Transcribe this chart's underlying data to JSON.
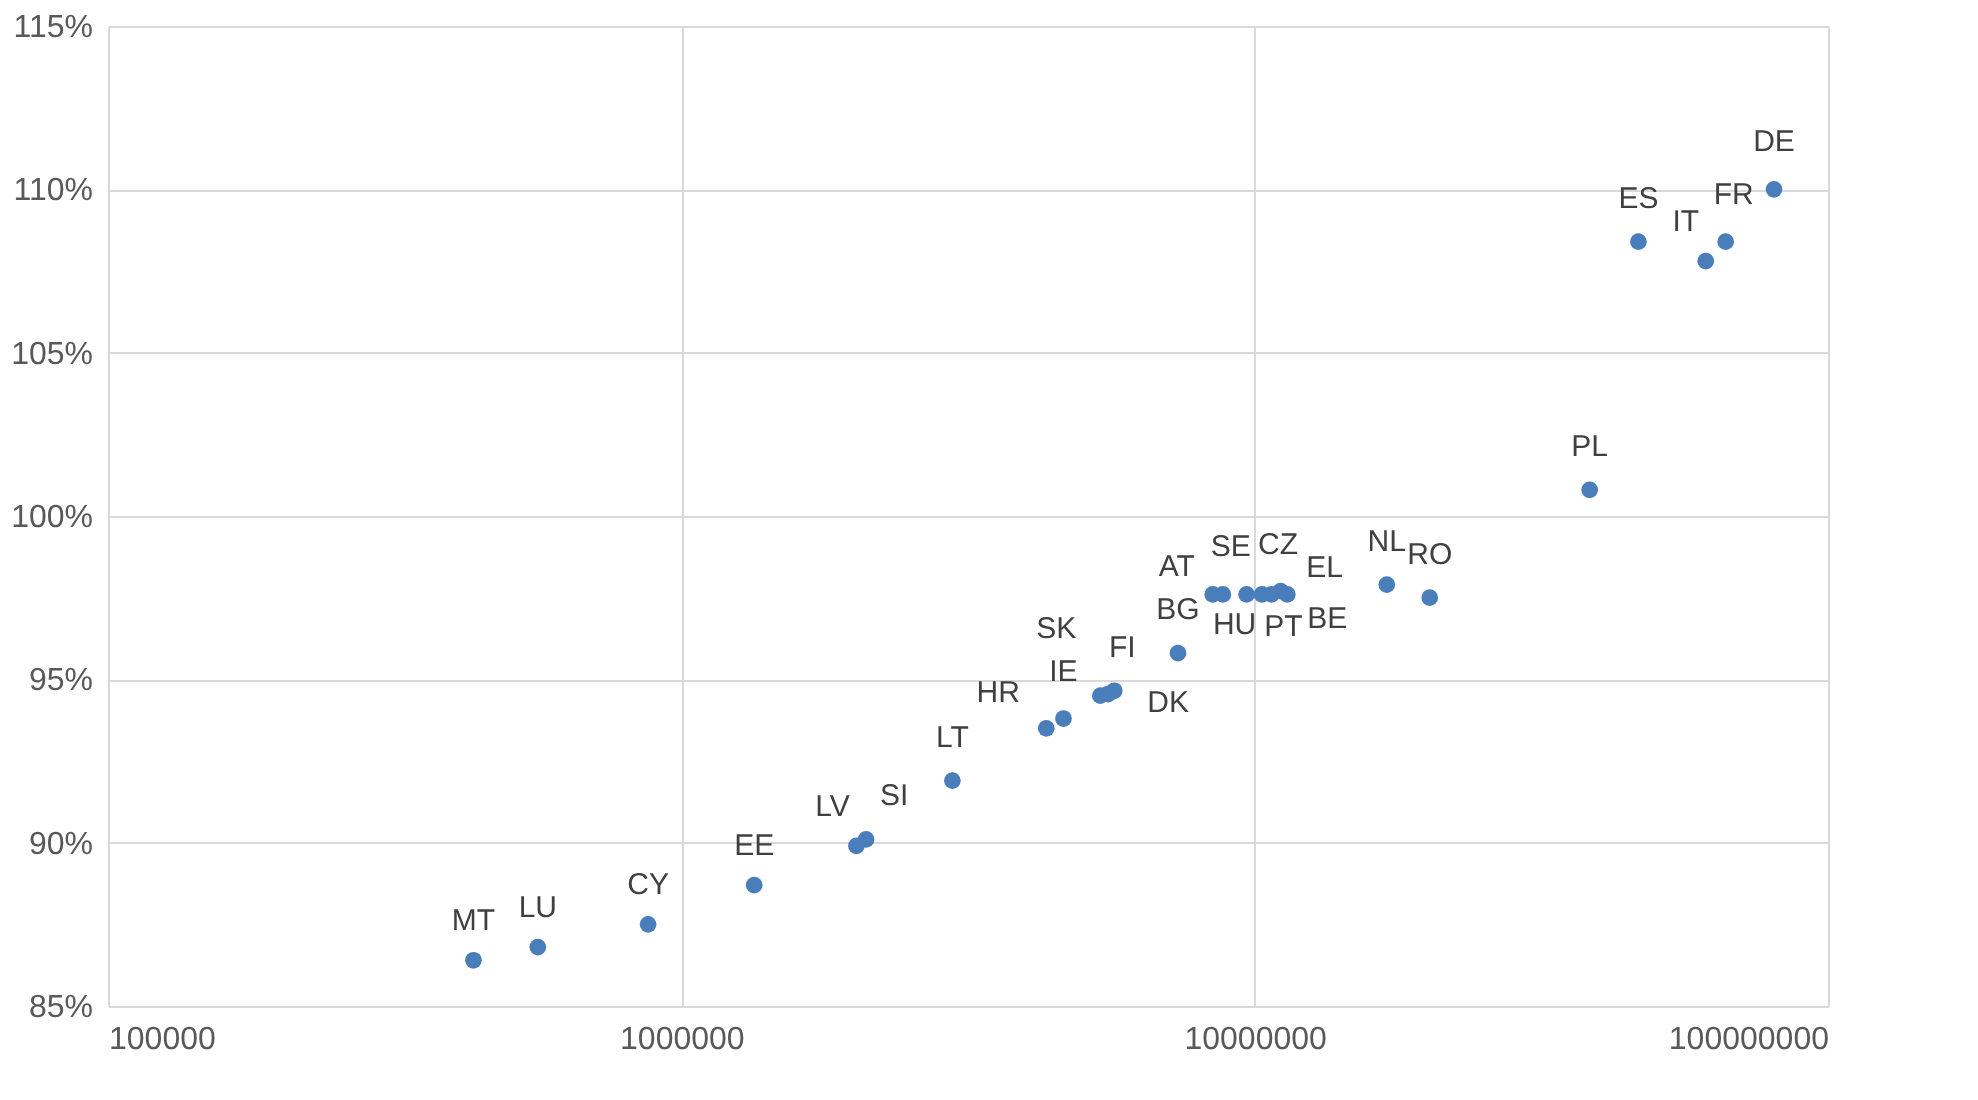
{
  "chart_data": {
    "type": "scatter",
    "log": "x",
    "grid": true,
    "marker": "circle",
    "x": [
      434000,
      562000,
      875000,
      1340000,
      2020000,
      2100000,
      2970000,
      4330000,
      4640000,
      5380000,
      5550000,
      5690000,
      7350000,
      8450000,
      8800000,
      9680000,
      10300000,
      10700000,
      11100000,
      11400000,
      17000000,
      20200000,
      38400000,
      46700000,
      61200000,
      66300000,
      80500000
    ],
    "series": [
      {
        "color": "#4a7ebb",
        "values": [
          86.4,
          86.8,
          87.5,
          88.7,
          89.9,
          90.1,
          91.9,
          93.5,
          93.8,
          94.5,
          94.55,
          94.65,
          95.8,
          97.6,
          97.6,
          97.6,
          97.6,
          97.6,
          97.7,
          97.6,
          97.9,
          97.5,
          100.8,
          108.4,
          107.8,
          108.4,
          110.0
        ]
      }
    ],
    "annotations": [
      {
        "text": "MT",
        "x": 434000,
        "y": 86.4
      },
      {
        "text": "LU",
        "x": 562000,
        "y": 86.8
      },
      {
        "text": "CY",
        "x": 875000,
        "y": 87.5
      },
      {
        "text": "EE",
        "x": 1340000,
        "y": 88.7
      },
      {
        "text": "LV",
        "x": 2020000,
        "y": 89.9
      },
      {
        "text": "SI",
        "x": 2100000,
        "y": 90.1
      },
      {
        "text": "LT",
        "x": 2970000,
        "y": 91.9
      },
      {
        "text": "HR",
        "x": 4330000,
        "y": 93.5
      },
      {
        "text": "IE",
        "x": 4640000,
        "y": 93.8
      },
      {
        "text": "SK",
        "x": 5380000,
        "y": 94.5
      },
      {
        "text": "DK",
        "x": 5550000,
        "y": 94.55
      },
      {
        "text": "FI",
        "x": 5690000,
        "y": 94.65
      },
      {
        "text": "BG",
        "x": 7350000,
        "y": 95.8
      },
      {
        "text": "AT",
        "x": 8450000,
        "y": 97.6
      },
      {
        "text": "SE",
        "x": 8800000,
        "y": 97.6
      },
      {
        "text": "HU",
        "x": 9680000,
        "y": 97.6
      },
      {
        "text": "CZ",
        "x": 10300000,
        "y": 97.6
      },
      {
        "text": "PT",
        "x": 10700000,
        "y": 97.6
      },
      {
        "text": "EL",
        "x": 11100000,
        "y": 97.7
      },
      {
        "text": "BE",
        "x": 11400000,
        "y": 97.6
      },
      {
        "text": "NL",
        "x": 17000000,
        "y": 97.9
      },
      {
        "text": "RO",
        "x": 20200000,
        "y": 97.5
      },
      {
        "text": "PL",
        "x": 38400000,
        "y": 100.8
      },
      {
        "text": "ES",
        "x": 46700000,
        "y": 108.4
      },
      {
        "text": "IT",
        "x": 61200000,
        "y": 107.8
      },
      {
        "text": "FR",
        "x": 66300000,
        "y": 108.4
      },
      {
        "text": "DE",
        "x": 80500000,
        "y": 110.0
      }
    ],
    "xlim": [
      100000,
      100000000
    ],
    "xticks": [
      100000,
      1000000,
      10000000,
      100000000
    ],
    "ylim": [
      85,
      115
    ],
    "yticks": [
      {
        "value": 85,
        "label": "85%"
      },
      {
        "value": 90,
        "label": "90%"
      },
      {
        "value": 95,
        "label": "95%"
      },
      {
        "value": 100,
        "label": "100%"
      },
      {
        "value": 105,
        "label": "105%"
      },
      {
        "value": 110,
        "label": "110%"
      },
      {
        "value": 115,
        "label": "115%"
      }
    ]
  }
}
